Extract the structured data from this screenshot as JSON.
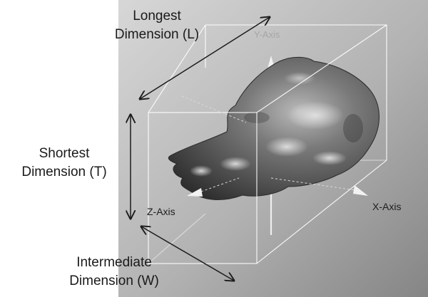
{
  "dimension_labels": {
    "longest": {
      "line1": "Longest",
      "line2": "Dimension (L)"
    },
    "shortest": {
      "line1": "Shortest",
      "line2": "Dimension (T)"
    },
    "intermediate": {
      "line1": "Intermediate",
      "line2": "Dimension (W)"
    }
  },
  "axis_labels": {
    "y": "Y-Axis",
    "z": "Z-Axis",
    "x": "X-Axis"
  },
  "colors": {
    "background_panel_light": "#d4d4d4",
    "background_panel_dark": "#898989",
    "bounding_box": "#ffffff",
    "object_mid": "#6c6c6c",
    "object_dark": "#3a3a3a",
    "arrows": "#1c1c1c"
  }
}
